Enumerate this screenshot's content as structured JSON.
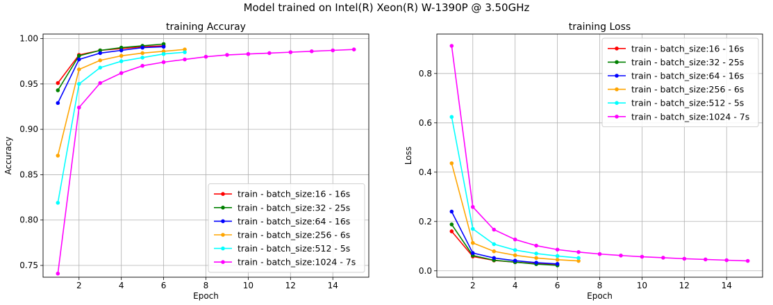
{
  "figure": {
    "suptitle": "Model trained on Intel(R) Xeon(R) W-1390P @ 3.50GHz"
  },
  "series_meta": [
    {
      "name": "train - batch_size:16 - 16s",
      "color": "#ff0000"
    },
    {
      "name": "train - batch_size:32 - 25s",
      "color": "#008000"
    },
    {
      "name": "train - batch_size:64 - 16s",
      "color": "#0000ff"
    },
    {
      "name": "train - batch_size:256 - 6s",
      "color": "#ffa500"
    },
    {
      "name": "train - batch_size:512 - 5s",
      "color": "#00ffff"
    },
    {
      "name": "train - batch_size:1024 - 7s",
      "color": "#ff00ff"
    }
  ],
  "chart_data": [
    {
      "type": "line",
      "title": "training Accuray",
      "xlabel": "Epoch",
      "ylabel": "Accuracy",
      "xlim": [
        0.3,
        15.7
      ],
      "ylim": [
        0.737,
        1.005
      ],
      "xticks": [
        2,
        4,
        6,
        8,
        10,
        12,
        14
      ],
      "yticks": [
        0.75,
        0.8,
        0.85,
        0.9,
        0.95,
        1.0
      ],
      "ytick_labels": [
        "0.75",
        "0.80",
        "0.85",
        "0.90",
        "0.95",
        "1.00"
      ],
      "grid": true,
      "legend_position": "lower-right",
      "series": [
        {
          "name": "train - batch_size:16 - 16s",
          "x": [
            1,
            2,
            3,
            4,
            5,
            6
          ],
          "values": [
            0.951,
            0.982,
            0.987,
            0.989,
            0.991,
            0.992
          ]
        },
        {
          "name": "train - batch_size:32 - 25s",
          "x": [
            1,
            2,
            3,
            4,
            5,
            6
          ],
          "values": [
            0.943,
            0.981,
            0.987,
            0.99,
            0.992,
            0.994
          ]
        },
        {
          "name": "train - batch_size:64 - 16s",
          "x": [
            1,
            2,
            3,
            4,
            5,
            6
          ],
          "values": [
            0.929,
            0.977,
            0.984,
            0.987,
            0.99,
            0.991
          ]
        },
        {
          "name": "train - batch_size:256 - 6s",
          "x": [
            1,
            2,
            3,
            4,
            5,
            6,
            7
          ],
          "values": [
            0.871,
            0.966,
            0.976,
            0.981,
            0.984,
            0.986,
            0.988
          ]
        },
        {
          "name": "train - batch_size:512 - 5s",
          "x": [
            1,
            2,
            3,
            4,
            5,
            6,
            7
          ],
          "values": [
            0.819,
            0.95,
            0.968,
            0.975,
            0.979,
            0.983,
            0.985
          ]
        },
        {
          "name": "train - batch_size:1024 - 7s",
          "x": [
            1,
            2,
            3,
            4,
            5,
            6,
            7,
            8,
            9,
            10,
            11,
            12,
            13,
            14,
            15
          ],
          "values": [
            0.741,
            0.924,
            0.951,
            0.962,
            0.97,
            0.974,
            0.977,
            0.98,
            0.982,
            0.983,
            0.984,
            0.985,
            0.986,
            0.987,
            0.988
          ]
        }
      ]
    },
    {
      "type": "line",
      "title": "training Loss",
      "xlabel": "Epoch",
      "ylabel": "Loss",
      "xlim": [
        0.3,
        15.7
      ],
      "ylim": [
        -0.026,
        0.96
      ],
      "xticks": [
        2,
        4,
        6,
        8,
        10,
        12,
        14
      ],
      "yticks": [
        0.0,
        0.2,
        0.4,
        0.6,
        0.8
      ],
      "ytick_labels": [
        "0.0",
        "0.2",
        "0.4",
        "0.6",
        "0.8"
      ],
      "grid": true,
      "legend_position": "upper-right",
      "series": [
        {
          "name": "train - batch_size:16 - 16s",
          "x": [
            1,
            2,
            3,
            4,
            5,
            6
          ],
          "values": [
            0.16,
            0.058,
            0.042,
            0.035,
            0.029,
            0.025
          ]
        },
        {
          "name": "train - batch_size:32 - 25s",
          "x": [
            1,
            2,
            3,
            4,
            5,
            6
          ],
          "values": [
            0.188,
            0.062,
            0.043,
            0.035,
            0.027,
            0.022
          ]
        },
        {
          "name": "train - batch_size:64 - 16s",
          "x": [
            1,
            2,
            3,
            4,
            5,
            6
          ],
          "values": [
            0.24,
            0.072,
            0.052,
            0.041,
            0.033,
            0.028
          ]
        },
        {
          "name": "train - batch_size:256 - 6s",
          "x": [
            1,
            2,
            3,
            4,
            5,
            6,
            7
          ],
          "values": [
            0.436,
            0.113,
            0.079,
            0.063,
            0.052,
            0.045,
            0.04
          ]
        },
        {
          "name": "train - batch_size:512 - 5s",
          "x": [
            1,
            2,
            3,
            4,
            5,
            6,
            7
          ],
          "values": [
            0.624,
            0.17,
            0.108,
            0.084,
            0.07,
            0.06,
            0.052
          ]
        },
        {
          "name": "train - batch_size:1024 - 7s",
          "x": [
            1,
            2,
            3,
            4,
            5,
            6,
            7,
            8,
            9,
            10,
            11,
            12,
            13,
            14,
            15
          ],
          "values": [
            0.912,
            0.259,
            0.167,
            0.127,
            0.102,
            0.086,
            0.076,
            0.068,
            0.062,
            0.057,
            0.053,
            0.049,
            0.046,
            0.043,
            0.04
          ]
        }
      ]
    }
  ]
}
